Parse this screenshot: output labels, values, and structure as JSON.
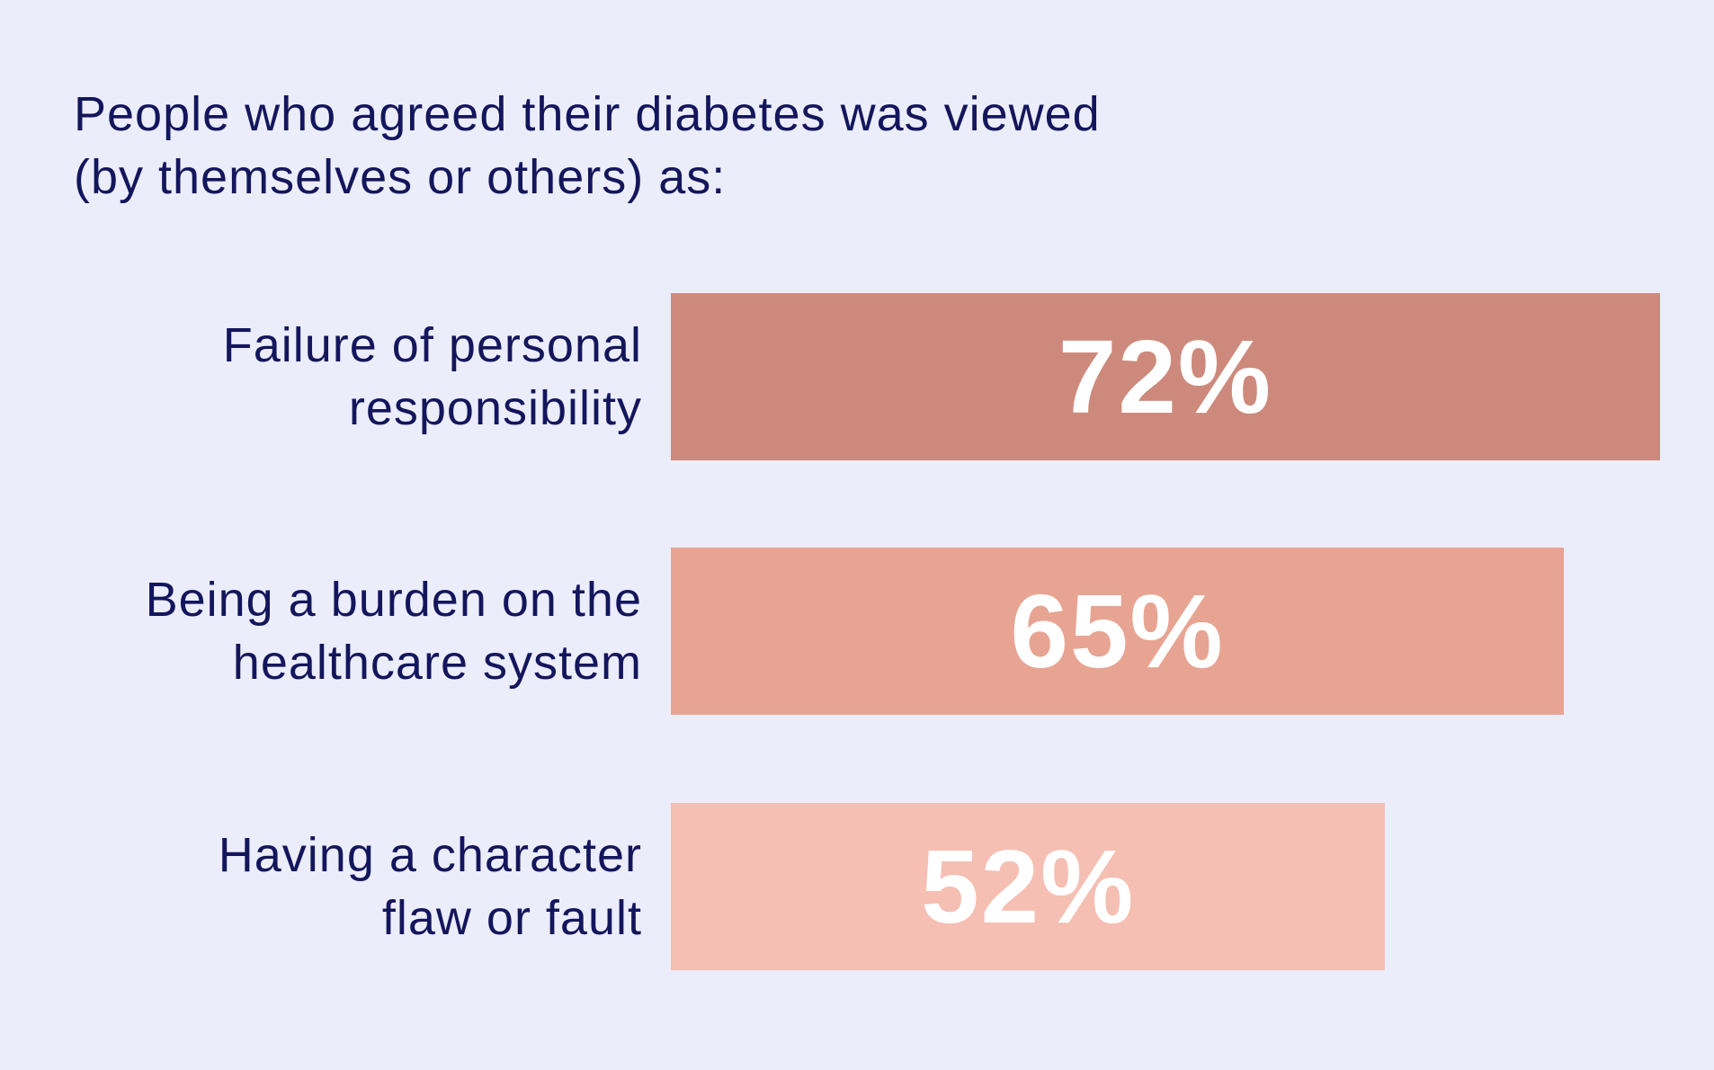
{
  "chart_data": {
    "type": "bar",
    "orientation": "horizontal",
    "title_lines": [
      "People who agreed their diabetes was viewed",
      "(by themselves or others) as:"
    ],
    "categories": [
      [
        "Failure of personal",
        "responsibility"
      ],
      [
        "Being a burden on the",
        "healthcare system"
      ],
      [
        "Having a character",
        "flaw or fault"
      ]
    ],
    "values": [
      72,
      65,
      52
    ],
    "value_labels": [
      "72%",
      "65%",
      "52%"
    ],
    "colors": [
      "#CD8A7C",
      "#E8A493",
      "#F5BFB3"
    ],
    "xlim": [
      0,
      72
    ],
    "grid": false,
    "legend": "none"
  },
  "colors": {
    "background": "#ECEDFB",
    "text": "#14165C"
  }
}
